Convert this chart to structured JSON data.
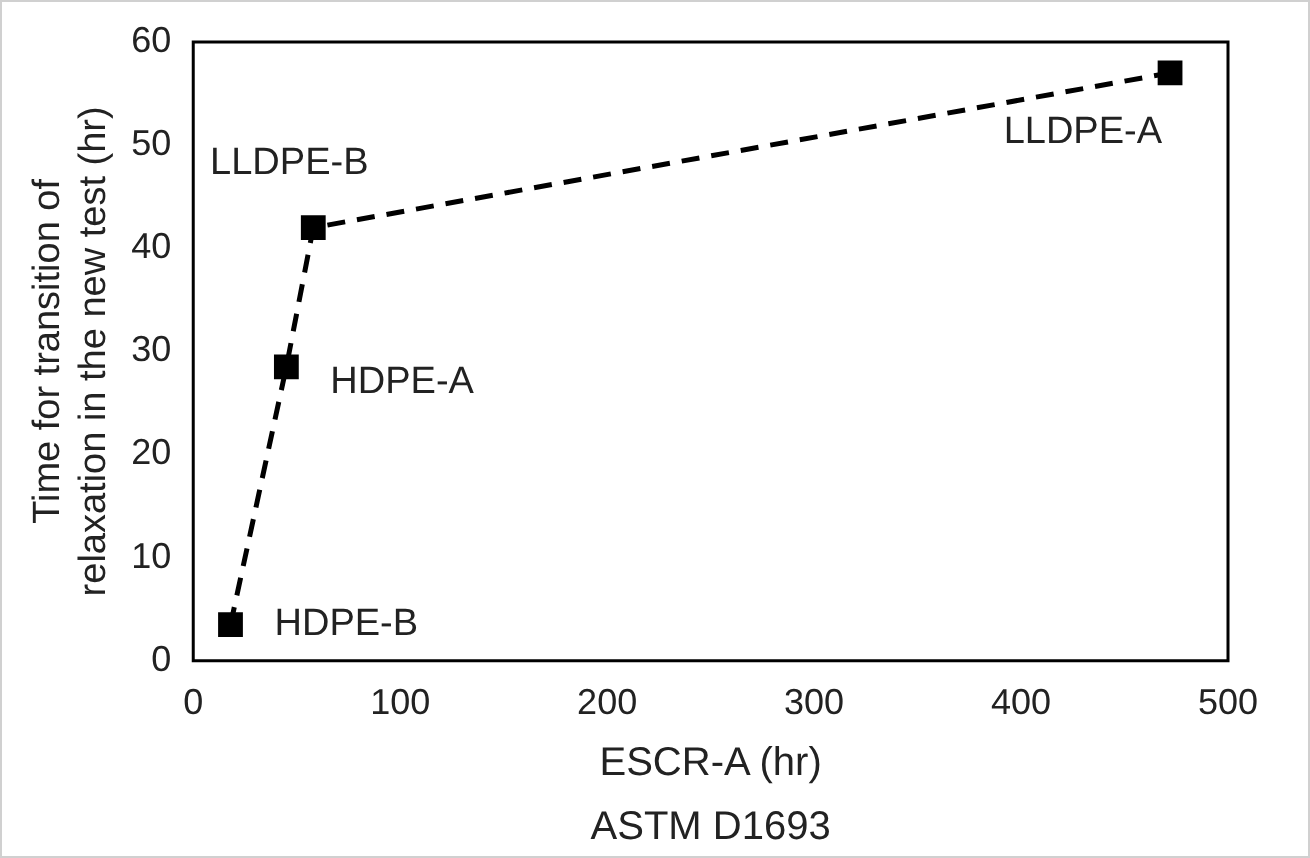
{
  "chart_data": {
    "type": "line",
    "xlabel": "ESCR-A (hr)",
    "ylabel": "Time for transition of relaxation in the new test (hr)",
    "x": [
      18,
      45,
      58,
      472
    ],
    "values": [
      3.5,
      28.5,
      42,
      57
    ],
    "color": "#000000",
    "marker": "square",
    "line_style": "dashed",
    "xlim": [
      0,
      500
    ],
    "xticks": [
      0,
      100,
      200,
      300,
      400,
      500
    ],
    "ylim": [
      0,
      60
    ],
    "yticks": [
      0,
      10,
      20,
      30,
      40,
      50,
      60
    ],
    "grid": false,
    "legend": false,
    "annotations": [
      {
        "text": "HDPE-B",
        "x": 18,
        "y": 3.5
      },
      {
        "text": "HDPE-A",
        "x": 45,
        "y": 28.5
      },
      {
        "text": "LLDPE-B",
        "x": 58,
        "y": 42
      },
      {
        "text": "LLDPE-A",
        "x": 472,
        "y": 57
      },
      "ASTM D1693"
    ]
  }
}
